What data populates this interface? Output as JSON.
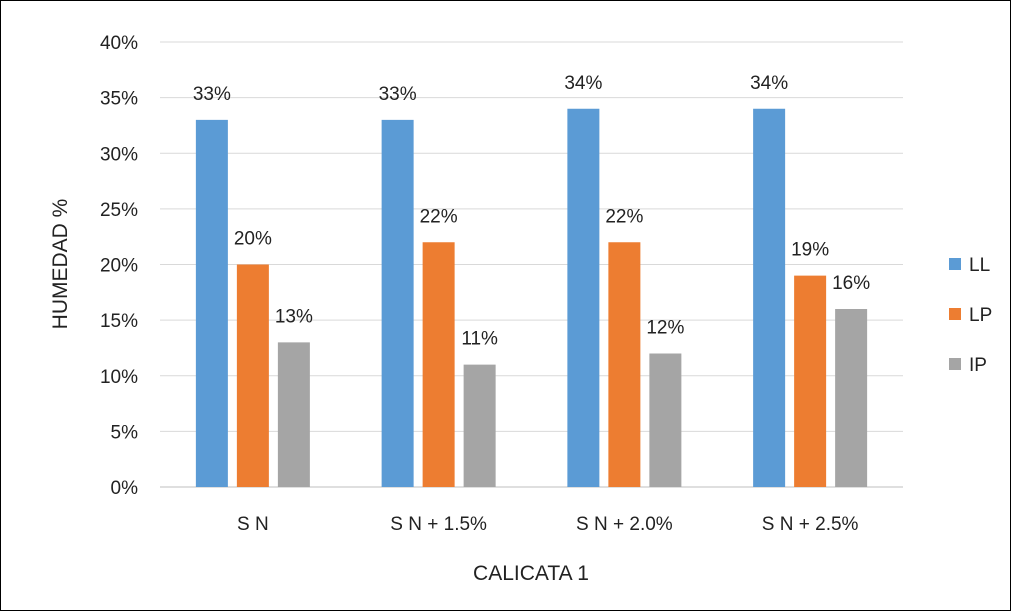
{
  "chart_data": {
    "type": "bar",
    "title": "",
    "xlabel": "CALICATA 1",
    "ylabel": "HUMEDAD %",
    "ylim": [
      0,
      40
    ],
    "yticks": [
      "0%",
      "5%",
      "10%",
      "15%",
      "20%",
      "25%",
      "30%",
      "35%",
      "40%"
    ],
    "categories": [
      "S N",
      "S N + 1.5%",
      "S N  + 2.0%",
      "S N + 2.5%"
    ],
    "series": [
      {
        "name": "LL",
        "color": "#5B9BD5",
        "values": [
          33,
          33,
          34,
          34
        ],
        "labels": [
          "33%",
          "33%",
          "34%",
          "34%"
        ]
      },
      {
        "name": "LP",
        "color": "#ED7D31",
        "values": [
          20,
          22,
          22,
          19
        ],
        "labels": [
          "20%",
          "22%",
          "22%",
          "19%"
        ]
      },
      {
        "name": "IP",
        "color": "#A5A5A5",
        "values": [
          13,
          11,
          12,
          16
        ],
        "labels": [
          "13%",
          "11%",
          "12%",
          "16%"
        ]
      }
    ],
    "grid": true,
    "legend_position": "right"
  }
}
